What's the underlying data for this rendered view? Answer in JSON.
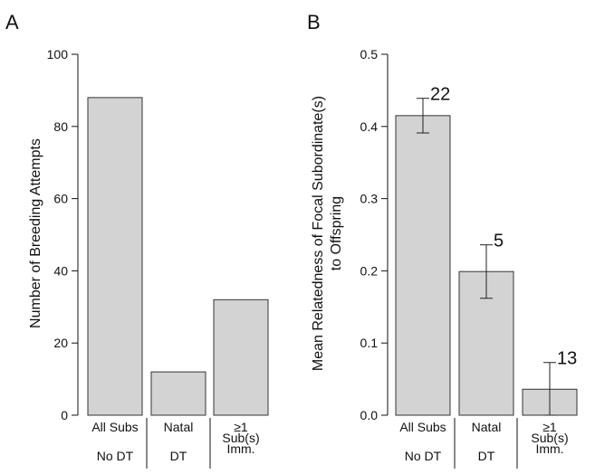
{
  "chart_data": [
    {
      "panel": "A",
      "type": "bar",
      "categories": [
        "All Subs",
        "Natal",
        "≥1 Sub(s) Imm."
      ],
      "category_lines": [
        [
          "All Subs"
        ],
        [
          "Natal"
        ],
        [
          "≥1",
          "Sub(s)",
          "Imm."
        ]
      ],
      "groups": [
        {
          "label": "No DT",
          "categories": [
            "All Subs"
          ]
        },
        {
          "label": "DT",
          "categories": [
            "Natal",
            "≥1 Sub(s) Imm."
          ]
        }
      ],
      "values": [
        88,
        12,
        32
      ],
      "ylabel": "Number of Breeding Attempts",
      "ylim": [
        0,
        100
      ],
      "yticks": [
        0,
        20,
        40,
        60,
        80,
        100
      ],
      "ytick_labels": [
        "0",
        "20",
        "40",
        "60",
        "80",
        "100"
      ],
      "grid": false,
      "bar_color": "#d3d3d3"
    },
    {
      "panel": "B",
      "type": "bar",
      "categories": [
        "All Subs",
        "Natal",
        "≥1 Sub(s) Imm."
      ],
      "category_lines": [
        [
          "All Subs"
        ],
        [
          "Natal"
        ],
        [
          "≥1",
          "Sub(s)",
          "Imm."
        ]
      ],
      "groups": [
        {
          "label": "No DT",
          "categories": [
            "All Subs"
          ]
        },
        {
          "label": "DT",
          "categories": [
            "Natal",
            "≥1 Sub(s) Imm."
          ]
        }
      ],
      "values": [
        0.415,
        0.199,
        0.036
      ],
      "error_low": [
        0.391,
        0.162,
        0.0
      ],
      "error_high": [
        0.439,
        0.236,
        0.073
      ],
      "bar_annotations": [
        "22",
        "5",
        "13"
      ],
      "ylabel_lines": [
        "Mean Relatedness of Focal Subordinate(s)",
        "to Offspring"
      ],
      "ylim": [
        0,
        0.5
      ],
      "yticks": [
        0,
        0.1,
        0.2,
        0.3,
        0.4,
        0.5
      ],
      "ytick_labels": [
        "0.0",
        "0.1",
        "0.2",
        "0.3",
        "0.4",
        "0.5"
      ],
      "grid": false,
      "bar_color": "#d3d3d3"
    }
  ]
}
